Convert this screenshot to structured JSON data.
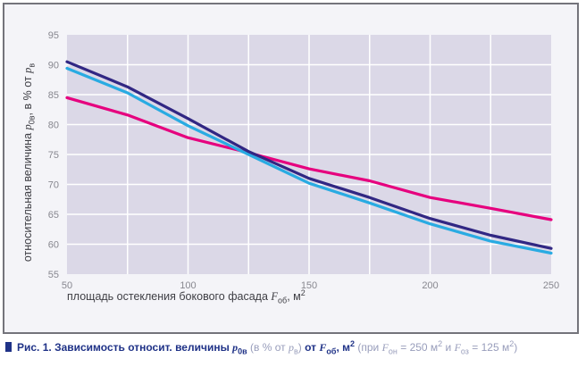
{
  "chart_data": {
    "type": "line",
    "x": [
      50,
      75,
      100,
      125,
      150,
      175,
      200,
      225,
      250
    ],
    "series": [
      {
        "name": "magenta",
        "color": "#e6007e",
        "values": [
          84.5,
          81.6,
          77.8,
          75.3,
          72.6,
          70.6,
          67.8,
          66.0,
          64.1
        ]
      },
      {
        "name": "light-blue",
        "color": "#29abe2",
        "values": [
          89.4,
          85.3,
          79.8,
          75.0,
          70.2,
          66.9,
          63.4,
          60.5,
          58.5
        ]
      },
      {
        "name": "dark-blue",
        "color": "#312783",
        "values": [
          90.5,
          86.3,
          81.0,
          75.5,
          71.0,
          67.8,
          64.3,
          61.5,
          59.3
        ]
      }
    ],
    "xlim": [
      50,
      250
    ],
    "ylim": [
      55,
      95
    ],
    "xticks": [
      50,
      100,
      150,
      200,
      250
    ],
    "yticks": [
      55,
      60,
      65,
      70,
      75,
      80,
      85,
      90,
      95
    ],
    "grid_step_x": 25,
    "grid_step_y": 5,
    "grid": "on",
    "legend": "none",
    "title": "",
    "xlabel": "площадь остекления бокового фасада Fоб, м2",
    "ylabel": "относительная величина p0в, в % от pв",
    "colors": {
      "plot_bg": "#dbd8e7",
      "grid": "#ffffff",
      "figure_bg": "#f4f4f8",
      "frame_border": "#74747b"
    }
  },
  "axes": {
    "y": {
      "label_prefix": "относительная величина ",
      "var1": "p",
      "sub1": "0в",
      "label_mid": ", в % от ",
      "var2": "p",
      "sub2": "в"
    },
    "x": {
      "label_prefix": "площадь остекления бокового фасада ",
      "var": "F",
      "sub": "об",
      "label_suffix": ", м",
      "sup": "2"
    }
  },
  "caption": {
    "part_bold1": "Рис. 1. Зависимость относит. величины ",
    "var_p1": "p",
    "sub_p1": "0в",
    "part_light1": " (в % от ",
    "var_p2": "p",
    "sub_p2": "в",
    "part_light1_end": ") ",
    "part_bold2": "от ",
    "var_f1": "F",
    "sub_f1": "об",
    "part_bold3": ", м",
    "sup_b": "2",
    "part_light2": " (при ",
    "var_f2": "F",
    "sub_f2": "он",
    "part_light3": " = 250 м",
    "sup_l1": "2",
    "part_light4": " и ",
    "var_f3": "F",
    "sub_f3": "оз",
    "part_light5": " = 125 м",
    "sup_l2": "2",
    "part_light6": ")",
    "accent_color": "#1f3287"
  }
}
